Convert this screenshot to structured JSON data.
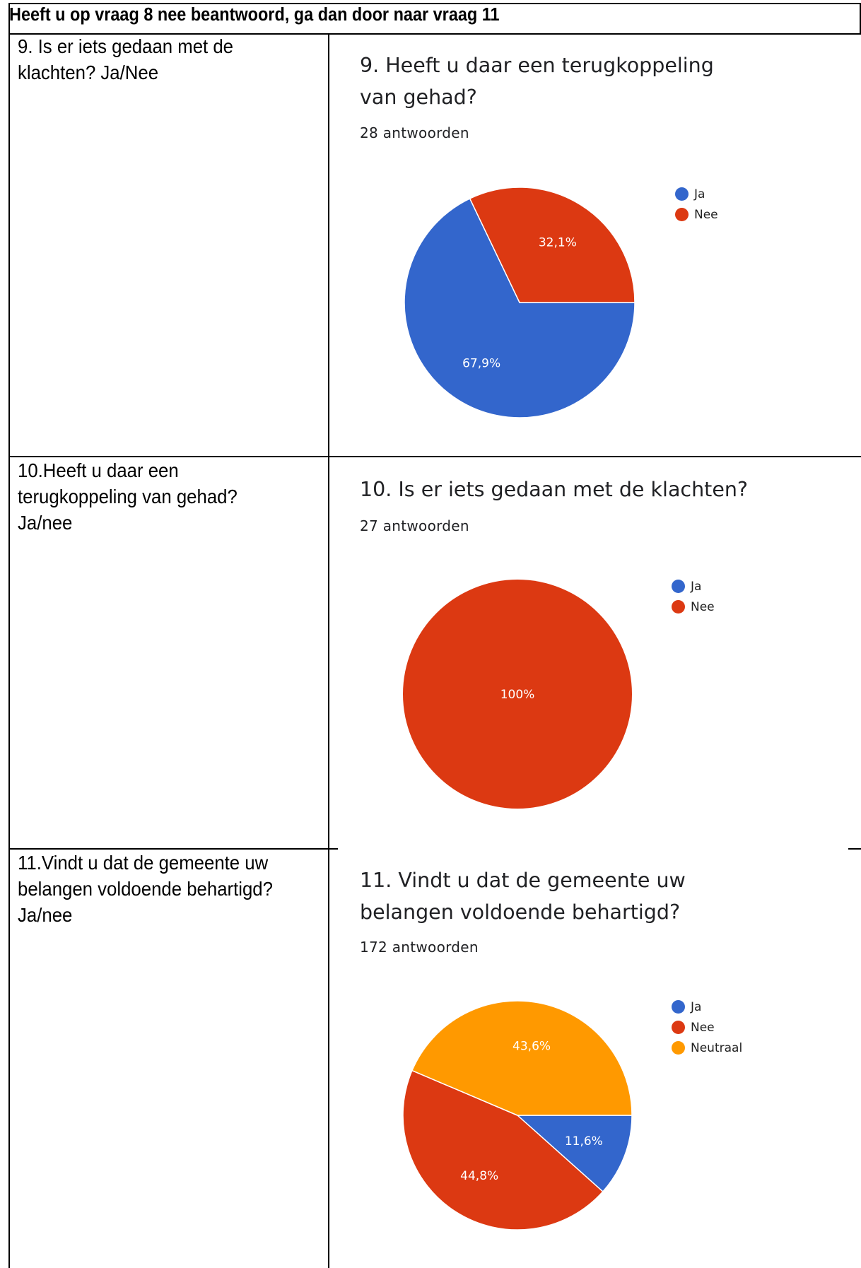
{
  "header": "Heeft u op vraag 8 nee beantwoord, ga dan door naar vraag 11",
  "colors": {
    "ja": "#3366cc",
    "nee": "#dc3912",
    "neutraal": "#ff9900"
  },
  "rows": [
    {
      "question": "9. Is er iets gedaan met de klachten? Ja/Nee",
      "chart_title": "9. Heeft u daar een terugkoppeling van gehad?",
      "responses": "28 antwoorden"
    },
    {
      "question": "10.Heeft u daar een terugkoppeling van gehad? Ja/nee",
      "chart_title": "10. Is er iets gedaan met de klachten?",
      "responses": "27 antwoorden"
    },
    {
      "question": "11.Vindt u dat de gemeente uw belangen voldoende behartigd? Ja/nee",
      "chart_title": "11. Vindt u dat de gemeente uw belangen voldoende behartigd?",
      "responses": "172 antwoorden"
    }
  ],
  "chart_data": [
    {
      "type": "pie",
      "title": "9. Heeft u daar een terugkoppeling van gehad?",
      "categories": [
        "Ja",
        "Nee"
      ],
      "values": [
        67.9,
        32.1
      ],
      "labels": [
        "67,9%",
        "32,1%"
      ],
      "legend": "right"
    },
    {
      "type": "pie",
      "title": "10. Is er iets gedaan met de klachten?",
      "categories": [
        "Ja",
        "Nee"
      ],
      "values": [
        0,
        100
      ],
      "labels": [
        "",
        "100%"
      ],
      "legend": "right"
    },
    {
      "type": "pie",
      "title": "11. Vindt u dat de gemeente uw belangen voldoende behartigd?",
      "categories": [
        "Ja",
        "Nee",
        "Neutraal"
      ],
      "values": [
        11.6,
        44.8,
        43.6
      ],
      "labels": [
        "11,6%",
        "44,8%",
        "43,6%"
      ],
      "legend": "right"
    }
  ]
}
